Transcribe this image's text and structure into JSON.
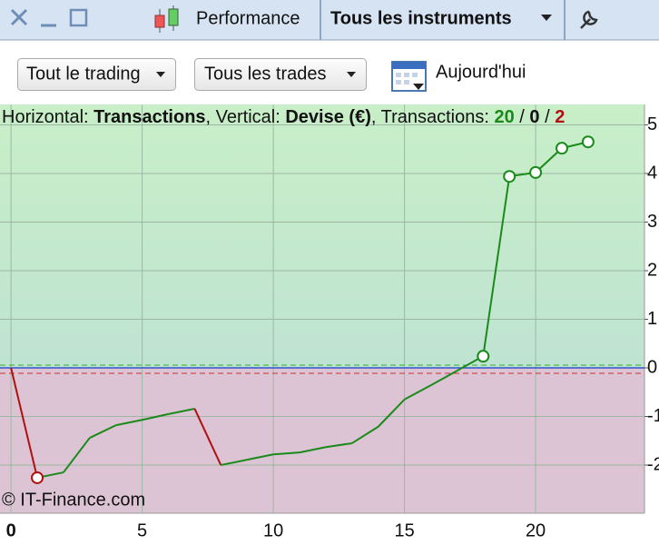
{
  "toolbar": {
    "tab": "Performance",
    "instruments": "Tous les instruments"
  },
  "filters": {
    "trading": "Tout le trading",
    "trades": "Tous les trades",
    "date": "Aujourd'hui"
  },
  "chart_header": {
    "horizontal_label": "Horizontal: ",
    "horizontal": "Transactions",
    "vertical_label": ", Vertical: ",
    "vertical": "Devise (€)",
    "count_label": ", Transactions: ",
    "separator": " / ",
    "wins": 20,
    "neutral": 0,
    "losses": 2
  },
  "watermark": "© IT-Finance.com",
  "chart_data": {
    "type": "line",
    "x": [
      0,
      1,
      2,
      3,
      4,
      5,
      6,
      7,
      8,
      9,
      10,
      11,
      12,
      13,
      14,
      15,
      16,
      17,
      18,
      19,
      20,
      21,
      22
    ],
    "values": [
      0,
      -2.26,
      -2.15,
      -1.44,
      -1.18,
      -1.07,
      -0.95,
      -0.84,
      -2.0,
      -1.89,
      -1.78,
      -1.74,
      -1.63,
      -1.55,
      -1.21,
      -0.65,
      -0.36,
      -0.06,
      0.24,
      3.94,
      4.02,
      4.52,
      4.65
    ],
    "markers": [
      1,
      18,
      19,
      20,
      21,
      22
    ],
    "up_color": "#1a8a1a",
    "down_color": "#b01010",
    "xlim": [
      -0.42,
      24.15
    ],
    "ylim": [
      -2.99,
      5.42
    ],
    "xticks": [
      0,
      5,
      10,
      15,
      20
    ],
    "yticks": [
      -2,
      -1,
      0,
      1,
      2,
      3,
      4,
      5
    ],
    "grid": true
  }
}
